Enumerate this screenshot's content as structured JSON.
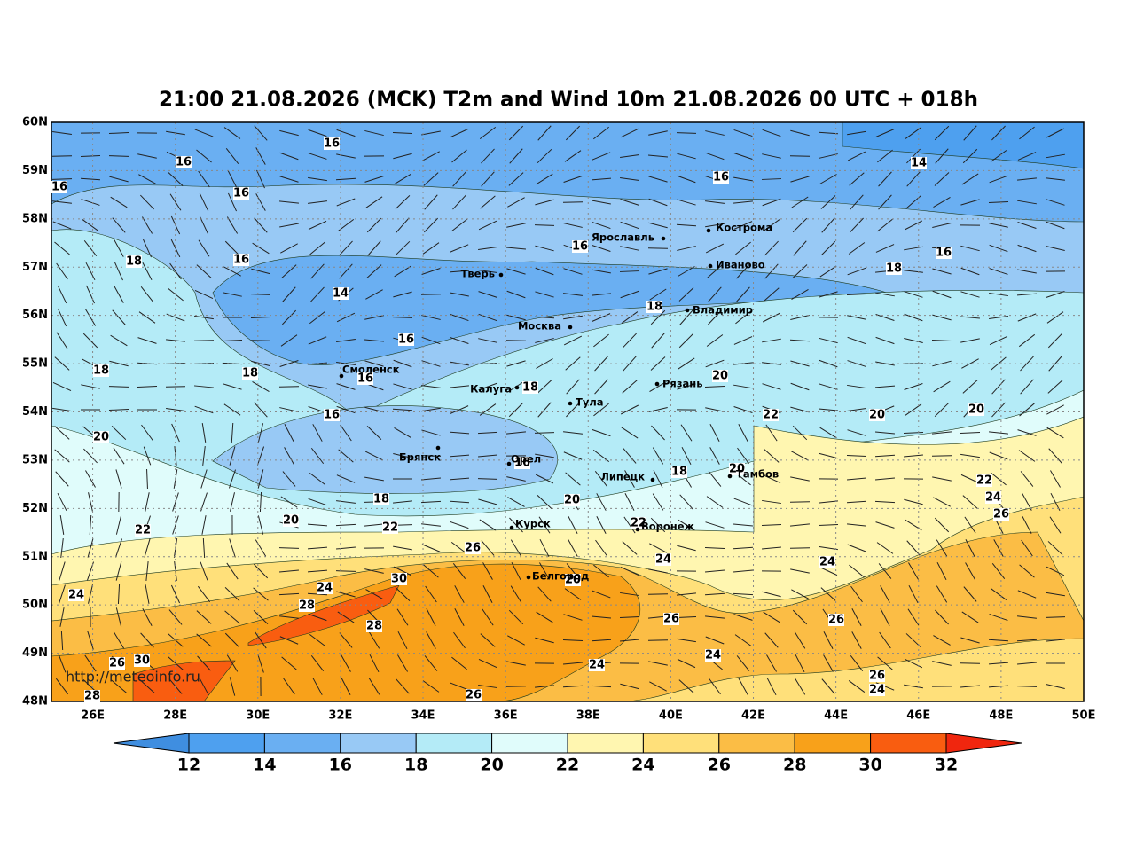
{
  "title": "21:00 21.08.2026 (MCK) T2m and Wind 10m 21.08.2026 00 UTC + 018h",
  "watermark": "http://meteoinfo.ru",
  "lat_ticks": [
    "60N",
    "59N",
    "58N",
    "57N",
    "56N",
    "55N",
    "54N",
    "53N",
    "52N",
    "51N",
    "50N",
    "49N",
    "48N"
  ],
  "lon_ticks": [
    "26E",
    "28E",
    "30E",
    "32E",
    "34E",
    "36E",
    "38E",
    "40E",
    "42E",
    "44E",
    "46E",
    "48E",
    "50E"
  ],
  "cities": [
    "Кострома",
    "Ярославль",
    "Иваново",
    "Тверь",
    "Владимир",
    "Москва",
    "Смоленск",
    "Калуга",
    "Рязань",
    "Тула",
    "Брянск",
    "Орел",
    "Липецк",
    "Тамбов",
    "Курск",
    "Воронеж",
    "Белгород"
  ],
  "contour_labels": [
    16,
    16,
    16,
    16,
    16,
    14,
    18,
    16,
    16,
    14,
    18,
    16,
    18,
    16,
    18,
    18,
    16,
    18,
    20,
    16,
    22,
    20,
    20,
    20,
    16,
    18,
    20,
    22,
    24,
    26,
    18,
    20,
    20,
    22,
    22,
    22,
    26,
    24,
    24,
    24,
    24,
    30,
    20,
    28,
    26,
    26,
    28,
    24,
    26,
    30,
    24,
    26,
    24,
    28,
    26
  ],
  "colorbar": {
    "colors": [
      "#3f8ee0",
      "#4ea0ef",
      "#6aaff2",
      "#98c9f5",
      "#b4ebf7",
      "#e0fcfb",
      "#fff6b0",
      "#ffe07a",
      "#fbbd45",
      "#f8a11a",
      "#f95d10",
      "#f0260e"
    ],
    "ticks": [
      12,
      14,
      16,
      18,
      20,
      22,
      24,
      26,
      28,
      30,
      32
    ]
  }
}
